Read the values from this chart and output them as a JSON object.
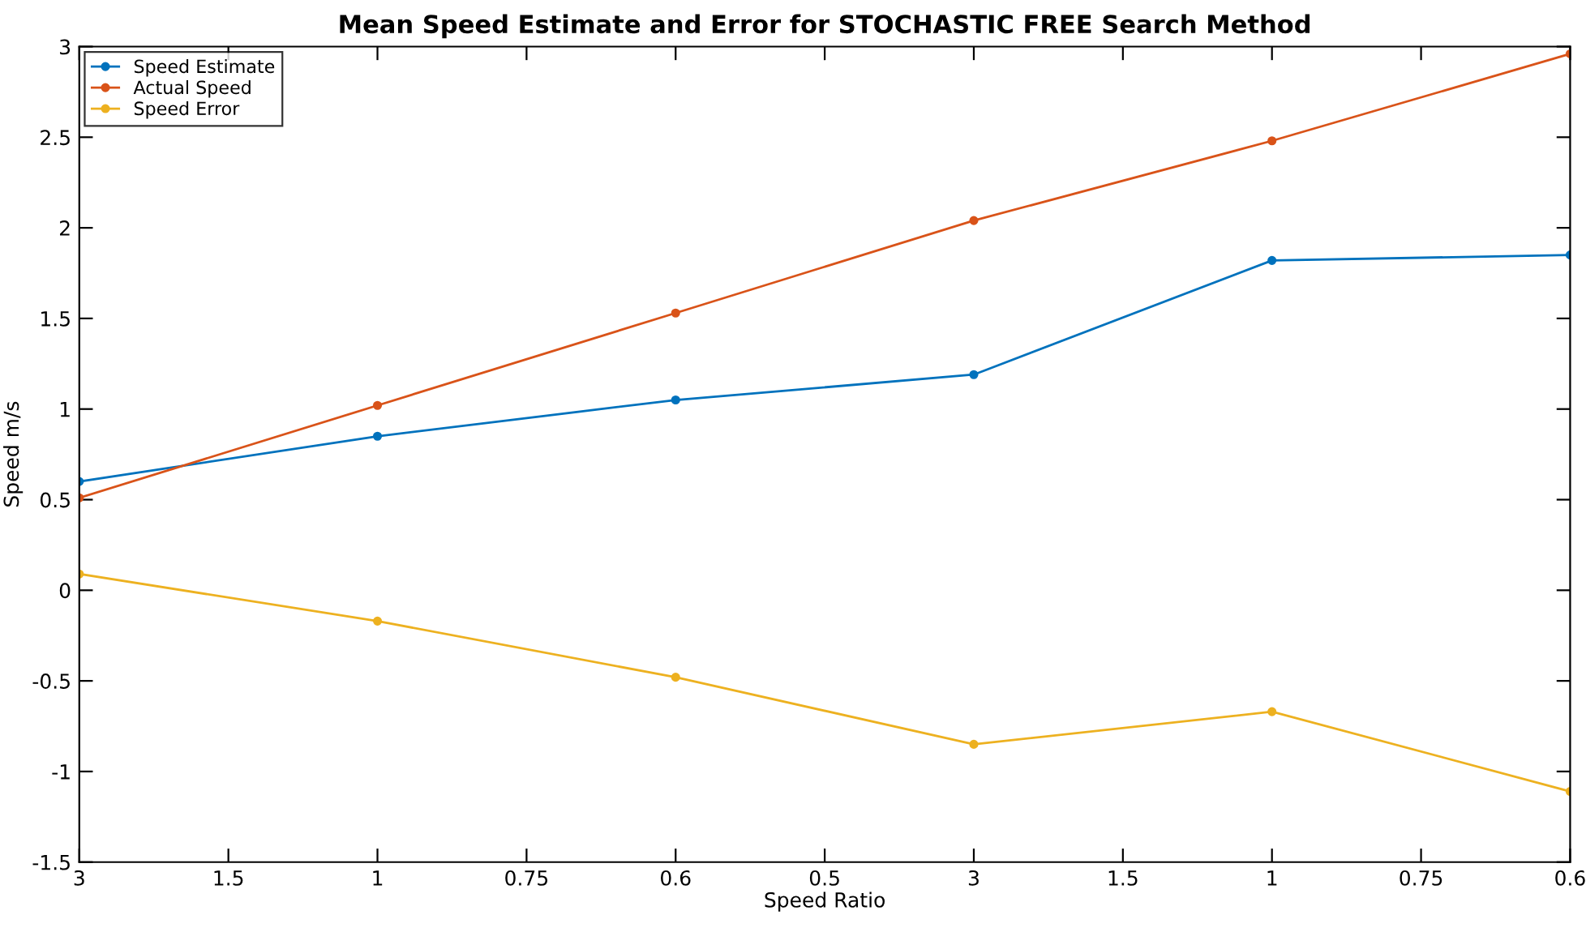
{
  "chart_data": {
    "type": "line",
    "title": "Mean Speed Estimate and Error for STOCHASTIC FREE Search Method",
    "xlabel": "Speed Ratio",
    "ylabel": "Speed m/s",
    "categories": [
      "3",
      "1.5",
      "1",
      "0.75",
      "0.6",
      "0.5",
      "3",
      "1.5",
      "1",
      "0.75",
      "0.6"
    ],
    "series": [
      {
        "name": "Speed Estimate",
        "color": "#0072bd",
        "values": [
          0.6,
          null,
          0.85,
          null,
          1.05,
          null,
          1.19,
          null,
          1.82,
          null,
          1.85
        ]
      },
      {
        "name": "Actual Speed",
        "color": "#d95319",
        "values": [
          0.51,
          null,
          1.02,
          null,
          1.53,
          null,
          2.04,
          null,
          2.48,
          null,
          2.96
        ]
      },
      {
        "name": "Speed Error",
        "color": "#edb120",
        "values": [
          0.09,
          null,
          -0.17,
          null,
          -0.48,
          null,
          -0.85,
          null,
          -0.67,
          null,
          -1.11
        ]
      }
    ],
    "ylim": [
      -1.5,
      3
    ],
    "yticks": [
      -1.5,
      -1,
      -0.5,
      0,
      0.5,
      1,
      1.5,
      2,
      2.5,
      3
    ],
    "legend": "top left",
    "marker": "circle",
    "line_style": "solid"
  }
}
